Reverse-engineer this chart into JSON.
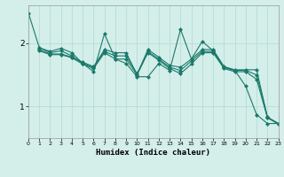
{
  "xlabel": "Humidex (Indice chaleur)",
  "x_range": [
    0,
    23
  ],
  "y_range": [
    0.5,
    2.6
  ],
  "yticks": [
    1,
    2
  ],
  "xticks": [
    0,
    1,
    2,
    3,
    4,
    5,
    6,
    7,
    8,
    9,
    10,
    11,
    12,
    13,
    14,
    15,
    16,
    17,
    18,
    19,
    20,
    21,
    22,
    23
  ],
  "bg_color": "#d4eeea",
  "grid_color": "#b8dbd6",
  "line_color": "#1a7a6a",
  "lines": [
    [
      2.48,
      1.93,
      1.87,
      1.92,
      1.85,
      1.68,
      1.55,
      2.15,
      1.75,
      1.68,
      1.47,
      1.47,
      1.68,
      1.57,
      2.22,
      1.75,
      2.03,
      1.88,
      1.62,
      1.57,
      1.32,
      0.87,
      0.73,
      0.73
    ],
    [
      null,
      1.93,
      1.85,
      1.88,
      1.8,
      1.68,
      1.62,
      1.9,
      1.85,
      1.85,
      1.5,
      1.9,
      1.78,
      1.65,
      1.62,
      1.75,
      1.9,
      1.9,
      1.63,
      1.58,
      1.58,
      1.58,
      0.83,
      0.73
    ],
    [
      null,
      1.9,
      1.83,
      1.83,
      1.78,
      1.7,
      1.63,
      1.87,
      1.8,
      1.8,
      1.52,
      1.87,
      1.75,
      1.62,
      1.57,
      1.72,
      1.87,
      1.87,
      1.62,
      1.57,
      1.57,
      1.5,
      0.83,
      0.73
    ],
    [
      null,
      1.88,
      1.82,
      1.82,
      1.77,
      1.67,
      1.6,
      1.85,
      1.75,
      1.75,
      1.5,
      1.85,
      1.73,
      1.6,
      1.52,
      1.67,
      1.85,
      1.85,
      1.6,
      1.55,
      1.55,
      1.43,
      0.82,
      0.72
    ]
  ]
}
